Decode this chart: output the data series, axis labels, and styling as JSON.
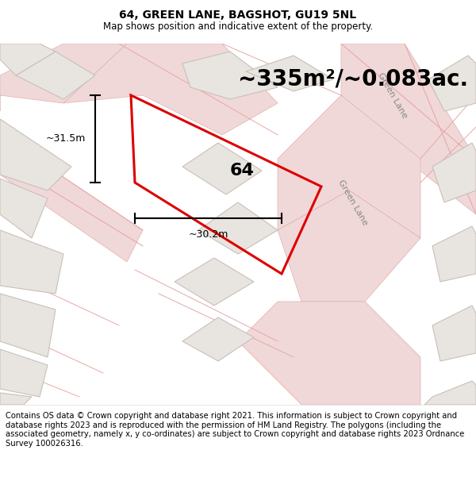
{
  "title": "64, GREEN LANE, BAGSHOT, GU19 5NL",
  "subtitle": "Map shows position and indicative extent of the property.",
  "area_text": "~335m²/~0.083ac.",
  "label_64": "64",
  "dim_width": "~30.2m",
  "dim_height": "~31.5m",
  "bg_color": "#f5f3f0",
  "road_color": "#f0d8d8",
  "road_edge_color": "#e0b0b0",
  "property_color": "#dd0000",
  "footer_text": "Contains OS data © Crown copyright and database right 2021. This information is subject to Crown copyright and database rights 2023 and is reproduced with the permission of HM Land Registry. The polygons (including the associated geometry, namely x, y co-ordinates) are subject to Crown copyright and database rights 2023 Ordnance Survey 100026316.",
  "title_fontsize": 10,
  "subtitle_fontsize": 8.5,
  "area_fontsize": 20,
  "label_fontsize": 16,
  "dim_fontsize": 9,
  "footer_fontsize": 7.2,
  "building_color": "#e8e5e0",
  "building_edge": "#c8c0b8",
  "road_line_color": "#e8a8a8"
}
